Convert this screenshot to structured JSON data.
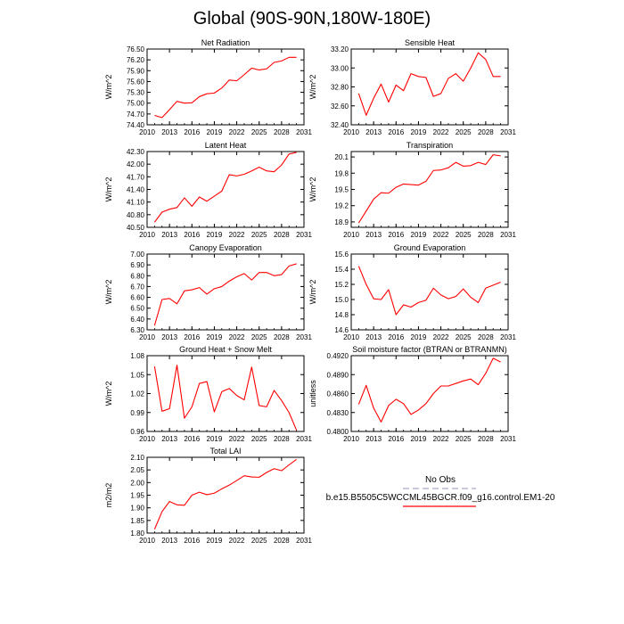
{
  "page_title": "Global (90S-90N,180W-180E)",
  "colors": {
    "series": "#ff0000",
    "obs": "#aaaacc",
    "axis": "#000000"
  },
  "legend": {
    "obs_label": "No Obs",
    "case_label": "b.e15.B5505C5WCCML45BGCR.f09_g16.control.EM1-20"
  },
  "chart_data": [
    {
      "type": "line",
      "title": "Net Radiation",
      "ylabel": "W/m^2",
      "xlim": [
        2010,
        2031
      ],
      "xticks": [
        2010,
        2013,
        2016,
        2019,
        2022,
        2025,
        2028,
        2031
      ],
      "ylim": [
        74.4,
        76.5
      ],
      "yticks": [
        "74.40",
        "74.70",
        "75.00",
        "75.30",
        "75.60",
        "75.90",
        "76.20",
        "76.50"
      ],
      "x": [
        2011,
        2012,
        2013,
        2014,
        2015,
        2016,
        2017,
        2018,
        2019,
        2020,
        2021,
        2022,
        2023,
        2024,
        2025,
        2026,
        2027,
        2028,
        2029,
        2030
      ],
      "values": [
        74.66,
        74.6,
        74.82,
        75.05,
        75.0,
        75.01,
        75.18,
        75.26,
        75.28,
        75.42,
        75.64,
        75.62,
        75.79,
        75.97,
        75.92,
        75.95,
        76.13,
        76.17,
        76.27,
        76.27
      ]
    },
    {
      "type": "line",
      "title": "Sensible Heat",
      "ylabel": "W/m^2",
      "xlim": [
        2010,
        2031
      ],
      "xticks": [
        2010,
        2013,
        2016,
        2019,
        2022,
        2025,
        2028,
        2031
      ],
      "ylim": [
        32.4,
        33.2
      ],
      "yticks": [
        "32.40",
        "32.60",
        "32.80",
        "33.00",
        "33.20"
      ],
      "x": [
        2011,
        2012,
        2013,
        2014,
        2015,
        2016,
        2017,
        2018,
        2019,
        2020,
        2021,
        2022,
        2023,
        2024,
        2025,
        2026,
        2027,
        2028,
        2029,
        2030
      ],
      "values": [
        32.73,
        32.5,
        32.68,
        32.83,
        32.64,
        32.82,
        32.76,
        32.94,
        32.91,
        32.9,
        32.7,
        32.73,
        32.89,
        32.94,
        32.86,
        33.0,
        33.16,
        33.09,
        32.91,
        32.91
      ]
    },
    {
      "type": "line",
      "title": "Latent Heat",
      "ylabel": "W/m^2",
      "xlim": [
        2010,
        2031
      ],
      "xticks": [
        2010,
        2013,
        2016,
        2019,
        2022,
        2025,
        2028,
        2031
      ],
      "ylim": [
        40.5,
        42.3
      ],
      "yticks": [
        "40.50",
        "40.80",
        "41.10",
        "41.40",
        "41.70",
        "42.00",
        "42.30"
      ],
      "x": [
        2011,
        2012,
        2013,
        2014,
        2015,
        2016,
        2017,
        2018,
        2019,
        2020,
        2021,
        2022,
        2023,
        2024,
        2025,
        2026,
        2027,
        2028,
        2029,
        2030
      ],
      "values": [
        40.62,
        40.86,
        40.93,
        40.97,
        41.2,
        41.0,
        41.22,
        41.12,
        41.24,
        41.36,
        41.75,
        41.72,
        41.76,
        41.84,
        41.93,
        41.84,
        41.82,
        41.98,
        42.24,
        42.28
      ]
    },
    {
      "type": "line",
      "title": "Transpiration",
      "ylabel": "W/m^2",
      "xlim": [
        2010,
        2031
      ],
      "xticks": [
        2010,
        2013,
        2016,
        2019,
        2022,
        2025,
        2028,
        2031
      ],
      "ylim": [
        18.8,
        20.2
      ],
      "yticks": [
        "18.9",
        "19.2",
        "19.5",
        "19.8",
        "20.1"
      ],
      "x": [
        2011,
        2012,
        2013,
        2014,
        2015,
        2016,
        2017,
        2018,
        2019,
        2020,
        2021,
        2022,
        2023,
        2024,
        2025,
        2026,
        2027,
        2028,
        2029,
        2030
      ],
      "values": [
        18.88,
        19.1,
        19.32,
        19.44,
        19.43,
        19.54,
        19.6,
        19.59,
        19.58,
        19.65,
        19.85,
        19.86,
        19.9,
        20.0,
        19.93,
        19.94,
        20.0,
        19.96,
        20.14,
        20.12
      ]
    },
    {
      "type": "line",
      "title": "Canopy Evaporation",
      "ylabel": "W/m^2",
      "xlim": [
        2010,
        2031
      ],
      "xticks": [
        2010,
        2013,
        2016,
        2019,
        2022,
        2025,
        2028,
        2031
      ],
      "ylim": [
        6.3,
        7.0
      ],
      "yticks": [
        "6.30",
        "6.40",
        "6.50",
        "6.60",
        "6.70",
        "6.80",
        "6.90",
        "7.00"
      ],
      "x": [
        2011,
        2012,
        2013,
        2014,
        2015,
        2016,
        2017,
        2018,
        2019,
        2020,
        2021,
        2022,
        2023,
        2024,
        2025,
        2026,
        2027,
        2028,
        2029,
        2030
      ],
      "values": [
        6.34,
        6.58,
        6.59,
        6.54,
        6.66,
        6.67,
        6.69,
        6.63,
        6.68,
        6.7,
        6.75,
        6.79,
        6.82,
        6.76,
        6.83,
        6.83,
        6.8,
        6.81,
        6.89,
        6.91
      ]
    },
    {
      "type": "line",
      "title": "Ground Evaporation",
      "ylabel": "W/m^2",
      "xlim": [
        2010,
        2031
      ],
      "xticks": [
        2010,
        2013,
        2016,
        2019,
        2022,
        2025,
        2028,
        2031
      ],
      "ylim": [
        14.6,
        15.6
      ],
      "yticks": [
        "14.6",
        "14.8",
        "15.0",
        "15.2",
        "15.4",
        "15.6"
      ],
      "x": [
        2011,
        2012,
        2013,
        2014,
        2015,
        2016,
        2017,
        2018,
        2019,
        2020,
        2021,
        2022,
        2023,
        2024,
        2025,
        2026,
        2027,
        2028,
        2029,
        2030
      ],
      "values": [
        15.44,
        15.2,
        15.01,
        15.0,
        15.13,
        14.8,
        14.93,
        14.9,
        14.96,
        14.99,
        15.15,
        15.06,
        15.01,
        15.04,
        15.14,
        15.03,
        14.96,
        15.15,
        15.19,
        15.23
      ]
    },
    {
      "type": "line",
      "title": "Ground Heat + Snow Melt",
      "ylabel": "W/m^2",
      "xlim": [
        2010,
        2031
      ],
      "xticks": [
        2010,
        2013,
        2016,
        2019,
        2022,
        2025,
        2028,
        2031
      ],
      "ylim": [
        0.96,
        1.08
      ],
      "yticks": [
        "0.96",
        "0.99",
        "1.02",
        "1.05",
        "1.08"
      ],
      "x": [
        2011,
        2012,
        2013,
        2014,
        2015,
        2016,
        2017,
        2018,
        2019,
        2020,
        2021,
        2022,
        2023,
        2024,
        2025,
        2026,
        2027,
        2028,
        2029,
        2030
      ],
      "values": [
        1.063,
        0.992,
        0.996,
        1.065,
        0.981,
        0.999,
        1.036,
        1.039,
        0.991,
        1.023,
        1.028,
        1.017,
        1.01,
        1.062,
        1.001,
        0.999,
        1.025,
        1.009,
        0.99,
        0.962
      ]
    },
    {
      "type": "line",
      "title": "Soil moisture factor (BTRAN or BTRANMN)",
      "ylabel": "unitless",
      "xlim": [
        2010,
        2031
      ],
      "xticks": [
        2010,
        2013,
        2016,
        2019,
        2022,
        2025,
        2028,
        2031
      ],
      "ylim": [
        0.48,
        0.492
      ],
      "yticks": [
        "0.4800",
        "0.4830",
        "0.4860",
        "0.4890",
        "0.4920"
      ],
      "x": [
        2011,
        2012,
        2013,
        2014,
        2015,
        2016,
        2017,
        2018,
        2019,
        2020,
        2021,
        2022,
        2023,
        2024,
        2025,
        2026,
        2027,
        2028,
        2029,
        2030
      ],
      "values": [
        0.4843,
        0.4873,
        0.4837,
        0.4815,
        0.4841,
        0.4851,
        0.4844,
        0.4827,
        0.4834,
        0.4844,
        0.486,
        0.4872,
        0.4872,
        0.4876,
        0.488,
        0.4883,
        0.4874,
        0.4892,
        0.4916,
        0.491
      ]
    },
    {
      "type": "line",
      "title": "Total LAI",
      "ylabel": "m2/m2",
      "xlim": [
        2010,
        2031
      ],
      "xticks": [
        2010,
        2013,
        2016,
        2019,
        2022,
        2025,
        2028,
        2031
      ],
      "ylim": [
        1.8,
        2.1
      ],
      "yticks": [
        "1.80",
        "1.85",
        "1.90",
        "1.95",
        "2.00",
        "2.05",
        "2.10"
      ],
      "x": [
        2011,
        2012,
        2013,
        2014,
        2015,
        2016,
        2017,
        2018,
        2019,
        2020,
        2021,
        2022,
        2023,
        2024,
        2025,
        2026,
        2027,
        2028,
        2029,
        2030
      ],
      "values": [
        1.815,
        1.885,
        1.925,
        1.912,
        1.91,
        1.95,
        1.962,
        1.952,
        1.958,
        1.975,
        1.99,
        2.008,
        2.027,
        2.022,
        2.021,
        2.04,
        2.055,
        2.047,
        2.07,
        2.092
      ]
    }
  ]
}
